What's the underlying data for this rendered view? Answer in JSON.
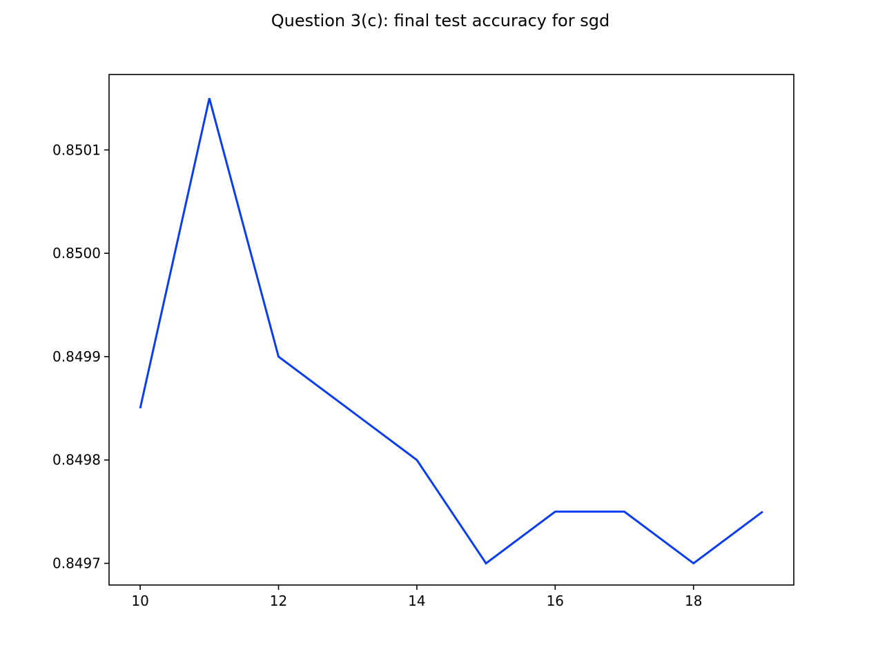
{
  "chart_data": {
    "type": "line",
    "title": "Question 3(c): final test accuracy for sgd",
    "xlabel": "",
    "ylabel": "",
    "x": [
      10,
      11,
      12,
      13,
      14,
      15,
      16,
      17,
      18,
      19
    ],
    "series": [
      {
        "values": [
          0.84985,
          0.85015,
          0.8499,
          0.84985,
          0.8498,
          0.8497,
          0.84975,
          0.84975,
          0.8497,
          0.84975
        ],
        "color": "#0a3cf0"
      }
    ],
    "xlim": [
      9.55,
      19.45
    ],
    "ylim": [
      0.849679,
      0.850173
    ],
    "xticks": [
      10,
      12,
      14,
      16,
      18
    ],
    "xtick_labels": [
      "10",
      "12",
      "14",
      "16",
      "18"
    ],
    "yticks": [
      0.8497,
      0.8498,
      0.8499,
      0.85,
      0.8501
    ],
    "ytick_labels": [
      "0.8497",
      "0.8498",
      "0.8499",
      "0.8500",
      "0.8501"
    ],
    "grid": false,
    "legend": "none"
  }
}
